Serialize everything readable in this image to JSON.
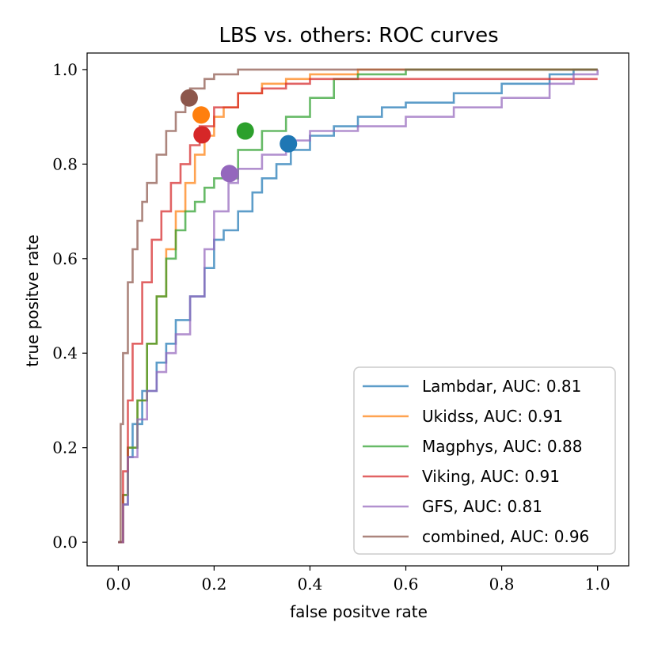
{
  "chart_data": {
    "type": "line",
    "title": "LBS vs. others: ROC curves",
    "xlabel": "false positve rate",
    "ylabel": "true positve rate",
    "xlim": [
      -0.065,
      1.065
    ],
    "ylim": [
      -0.05,
      1.035
    ],
    "xticks": [
      {
        "value": 0.0,
        "label": "0.0"
      },
      {
        "value": 0.2,
        "label": "0.2"
      },
      {
        "value": 0.4,
        "label": "0.4"
      },
      {
        "value": 0.6,
        "label": "0.6"
      },
      {
        "value": 0.8,
        "label": "0.8"
      },
      {
        "value": 1.0,
        "label": "1.0"
      }
    ],
    "yticks": [
      {
        "value": 0.0,
        "label": "0.0"
      },
      {
        "value": 0.2,
        "label": "0.2"
      },
      {
        "value": 0.4,
        "label": "0.4"
      },
      {
        "value": 0.6,
        "label": "0.6"
      },
      {
        "value": 0.8,
        "label": "0.8"
      },
      {
        "value": 1.0,
        "label": "1.0"
      }
    ],
    "legend_position": "lower-right",
    "series": [
      {
        "name": "Lambdar",
        "legend_label": "Lambdar, AUC: 0.81",
        "auc": 0.81,
        "color": "#1f77b4",
        "marker": {
          "fpr": 0.355,
          "tpr": 0.843
        },
        "x": [
          0.0,
          0.01,
          0.02,
          0.03,
          0.05,
          0.08,
          0.1,
          0.12,
          0.15,
          0.18,
          0.2,
          0.22,
          0.25,
          0.28,
          0.3,
          0.33,
          0.36,
          0.4,
          0.45,
          0.5,
          0.55,
          0.6,
          0.7,
          0.8,
          0.9,
          0.95,
          1.0
        ],
        "y": [
          0.0,
          0.08,
          0.18,
          0.25,
          0.32,
          0.38,
          0.42,
          0.47,
          0.52,
          0.58,
          0.64,
          0.66,
          0.7,
          0.74,
          0.77,
          0.8,
          0.83,
          0.86,
          0.88,
          0.9,
          0.92,
          0.93,
          0.95,
          0.97,
          0.99,
          1.0,
          1.0
        ]
      },
      {
        "name": "Ukidss",
        "legend_label": "Ukidss, AUC: 0.91",
        "auc": 0.91,
        "color": "#ff7f0e",
        "marker": {
          "fpr": 0.173,
          "tpr": 0.904
        },
        "x": [
          0.0,
          0.01,
          0.02,
          0.04,
          0.06,
          0.08,
          0.1,
          0.12,
          0.14,
          0.16,
          0.18,
          0.2,
          0.22,
          0.25,
          0.3,
          0.35,
          0.4,
          0.5,
          0.6,
          0.7,
          1.0
        ],
        "y": [
          0.0,
          0.1,
          0.2,
          0.3,
          0.42,
          0.52,
          0.62,
          0.7,
          0.76,
          0.82,
          0.86,
          0.9,
          0.92,
          0.95,
          0.97,
          0.98,
          0.99,
          1.0,
          1.0,
          1.0,
          1.0
        ]
      },
      {
        "name": "Magphys",
        "legend_label": "Magphys, AUC: 0.88",
        "auc": 0.88,
        "color": "#2ca02c",
        "marker": {
          "fpr": 0.265,
          "tpr": 0.87
        },
        "x": [
          0.0,
          0.01,
          0.02,
          0.04,
          0.06,
          0.08,
          0.1,
          0.12,
          0.14,
          0.16,
          0.18,
          0.2,
          0.25,
          0.3,
          0.35,
          0.4,
          0.45,
          0.5,
          0.6,
          0.7,
          0.8,
          1.0
        ],
        "y": [
          0.0,
          0.1,
          0.2,
          0.3,
          0.42,
          0.52,
          0.6,
          0.66,
          0.7,
          0.72,
          0.75,
          0.77,
          0.83,
          0.87,
          0.9,
          0.94,
          0.98,
          0.99,
          1.0,
          1.0,
          1.0,
          1.0
        ]
      },
      {
        "name": "Viking",
        "legend_label": "Viking, AUC: 0.91",
        "auc": 0.91,
        "color": "#d62728",
        "marker": {
          "fpr": 0.175,
          "tpr": 0.862
        },
        "x": [
          0.0,
          0.01,
          0.02,
          0.03,
          0.05,
          0.07,
          0.09,
          0.11,
          0.13,
          0.15,
          0.17,
          0.2,
          0.25,
          0.3,
          0.35,
          0.4,
          0.5,
          0.6,
          0.8,
          1.0
        ],
        "y": [
          0.0,
          0.15,
          0.3,
          0.42,
          0.55,
          0.64,
          0.7,
          0.76,
          0.8,
          0.84,
          0.88,
          0.92,
          0.95,
          0.96,
          0.97,
          0.98,
          0.98,
          0.98,
          0.98,
          0.98
        ]
      },
      {
        "name": "GFS",
        "legend_label": "GFS, AUC: 0.81",
        "auc": 0.81,
        "color": "#9467bd",
        "marker": {
          "fpr": 0.232,
          "tpr": 0.78
        },
        "x": [
          0.0,
          0.01,
          0.02,
          0.04,
          0.06,
          0.08,
          0.1,
          0.12,
          0.15,
          0.18,
          0.2,
          0.23,
          0.25,
          0.3,
          0.35,
          0.4,
          0.5,
          0.6,
          0.7,
          0.8,
          0.9,
          0.95,
          1.0
        ],
        "y": [
          0.0,
          0.08,
          0.18,
          0.26,
          0.32,
          0.36,
          0.4,
          0.44,
          0.52,
          0.62,
          0.7,
          0.76,
          0.79,
          0.82,
          0.85,
          0.87,
          0.88,
          0.9,
          0.92,
          0.94,
          0.97,
          0.99,
          1.0
        ]
      },
      {
        "name": "combined",
        "legend_label": "combined, AUC: 0.96",
        "auc": 0.96,
        "color": "#8c564b",
        "marker": {
          "fpr": 0.148,
          "tpr": 0.94
        },
        "x": [
          0.0,
          0.005,
          0.01,
          0.02,
          0.03,
          0.04,
          0.05,
          0.06,
          0.08,
          0.1,
          0.12,
          0.14,
          0.15,
          0.18,
          0.2,
          0.25,
          0.3,
          0.35,
          0.4,
          0.5,
          1.0
        ],
        "y": [
          0.0,
          0.25,
          0.4,
          0.55,
          0.62,
          0.68,
          0.72,
          0.76,
          0.82,
          0.87,
          0.91,
          0.94,
          0.96,
          0.98,
          0.99,
          1.0,
          1.0,
          1.0,
          1.0,
          1.0,
          1.0
        ]
      }
    ]
  }
}
